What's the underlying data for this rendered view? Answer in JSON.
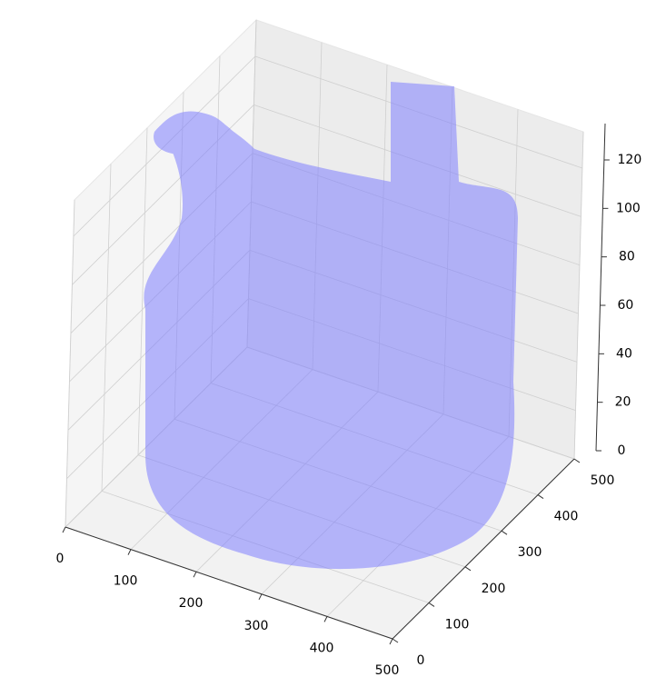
{
  "chart_data": {
    "type": "voxel3d",
    "color": "#8080ff",
    "xlim": [
      0,
      500
    ],
    "ylim": [
      0,
      500
    ],
    "zlim": [
      0,
      135
    ],
    "xticks": [
      0,
      100,
      200,
      300,
      400,
      500
    ],
    "yticks": [
      0,
      100,
      200,
      300,
      400,
      500
    ],
    "zticks": [
      0,
      20,
      40,
      60,
      80,
      100,
      120
    ],
    "grid": true
  }
}
